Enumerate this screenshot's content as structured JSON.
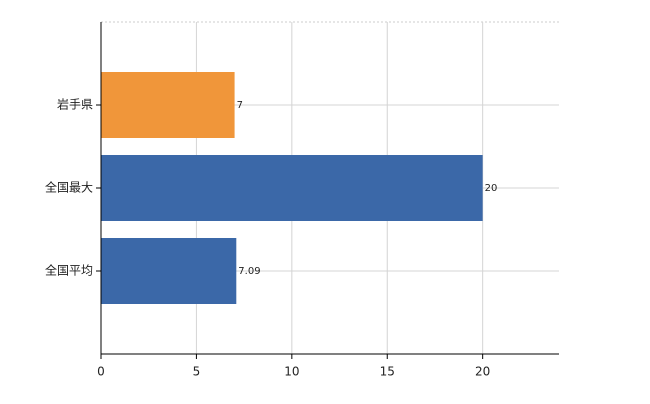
{
  "chart_data": {
    "type": "hbar",
    "categories": [
      "岩手県",
      "全国最大",
      "全国平均"
    ],
    "values": [
      7,
      20,
      7.09
    ],
    "colors": [
      "#f0963a",
      "#3b68a8",
      "#3b68a8"
    ],
    "xlim": [
      0,
      24
    ],
    "xticks": [
      0,
      5,
      10,
      15,
      20
    ],
    "grid": true
  }
}
